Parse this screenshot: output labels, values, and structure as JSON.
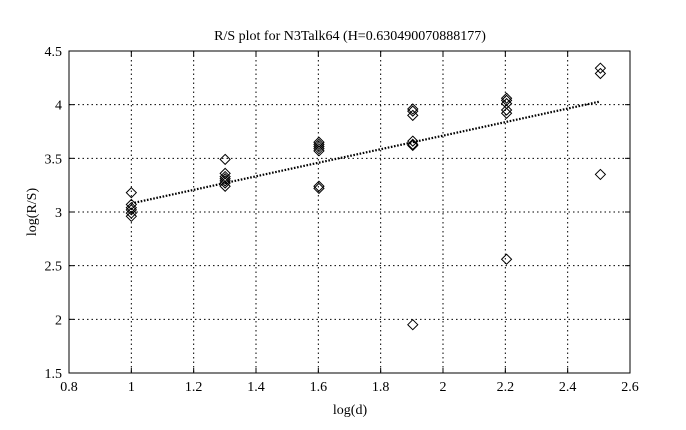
{
  "chart_data": {
    "type": "scatter",
    "title": "R/S plot for N3Talk64 (H=0.630490070888177)",
    "xlabel": "log(d)",
    "ylabel": "log(R/S)",
    "xlim": [
      0.8,
      2.6
    ],
    "ylim": [
      1.5,
      4.5
    ],
    "xticks": [
      0.8,
      1,
      1.2,
      1.4,
      1.6,
      1.8,
      2,
      2.2,
      2.4,
      2.6
    ],
    "xtick_labels": [
      "0.8",
      "1",
      "1.2",
      "1.4",
      "1.6",
      "1.8",
      "2",
      "2.2",
      "2.4",
      "2.6"
    ],
    "yticks": [
      1.5,
      2,
      2.5,
      3,
      3.5,
      4,
      4.5
    ],
    "ytick_labels": [
      "1.5",
      "2",
      "2.5",
      "3",
      "3.5",
      "4",
      "4.5"
    ],
    "grid": true,
    "grid_style": "dotted",
    "marker": "diamond",
    "colors": {
      "marker_stroke": "#000000",
      "fit_line": "#000000",
      "grid": "#000000"
    },
    "series": [
      {
        "type": "scatter",
        "points": [
          [
            1.0,
            3.18
          ],
          [
            1.0,
            3.07
          ],
          [
            1.0,
            3.04
          ],
          [
            1.0,
            3.02
          ],
          [
            1.0,
            2.99
          ],
          [
            1.0,
            2.96
          ],
          [
            1.301,
            3.49
          ],
          [
            1.301,
            3.36
          ],
          [
            1.301,
            3.33
          ],
          [
            1.301,
            3.31
          ],
          [
            1.301,
            3.29
          ],
          [
            1.301,
            3.27
          ],
          [
            1.301,
            3.24
          ],
          [
            1.602,
            3.65
          ],
          [
            1.602,
            3.63
          ],
          [
            1.602,
            3.61
          ],
          [
            1.602,
            3.59
          ],
          [
            1.602,
            3.57
          ],
          [
            1.602,
            3.24
          ],
          [
            1.602,
            3.22
          ],
          [
            1.903,
            3.96
          ],
          [
            1.903,
            3.94
          ],
          [
            1.903,
            3.9
          ],
          [
            1.903,
            3.66
          ],
          [
            1.903,
            3.63
          ],
          [
            1.903,
            3.62
          ],
          [
            1.903,
            1.95
          ],
          [
            2.204,
            4.06
          ],
          [
            2.204,
            4.04
          ],
          [
            2.204,
            4.01
          ],
          [
            2.204,
            3.95
          ],
          [
            2.204,
            3.92
          ],
          [
            2.204,
            2.56
          ],
          [
            2.505,
            4.34
          ],
          [
            2.505,
            4.29
          ],
          [
            2.505,
            3.35
          ]
        ]
      },
      {
        "type": "line",
        "style": "dotted",
        "points": [
          [
            1.0,
            3.08
          ],
          [
            2.505,
            4.03
          ]
        ]
      }
    ]
  }
}
